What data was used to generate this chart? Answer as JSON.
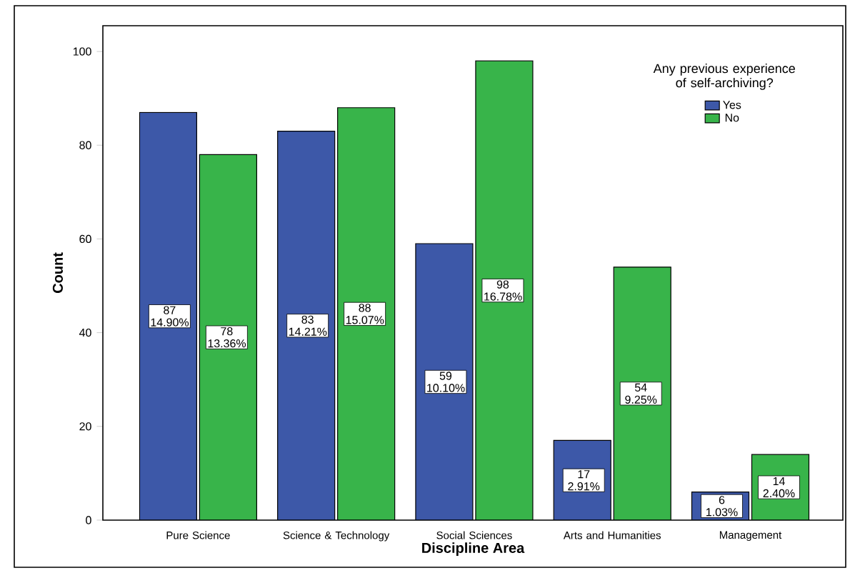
{
  "chart_data": {
    "type": "bar",
    "xlabel": "Discipline Area",
    "ylabel": "Count",
    "legend_title": "Any previous experience of self-archiving?",
    "categories": [
      "Pure Science",
      "Science & Technology",
      "Social Sciences",
      "Arts and Humanities",
      "Management"
    ],
    "series": [
      {
        "name": "Yes",
        "color": "#3d58a8",
        "values": [
          87,
          83,
          59,
          17,
          6
        ],
        "value_labels": [
          "87 14.90%",
          "83 14.21%",
          "59 10.10%",
          "17 2.91%",
          "6 1.03%"
        ]
      },
      {
        "name": "No",
        "color": "#38b44a",
        "values": [
          78,
          88,
          98,
          54,
          14
        ],
        "value_labels": [
          "78 13.36%",
          "88 15.07%",
          "98 16.78%",
          "54 9.25%",
          "14 2.40%"
        ]
      }
    ],
    "ylim": [
      0,
      105.5
    ],
    "yticks": [
      0,
      20,
      40,
      60,
      80,
      100
    ],
    "legend": "top right",
    "grid": false
  }
}
